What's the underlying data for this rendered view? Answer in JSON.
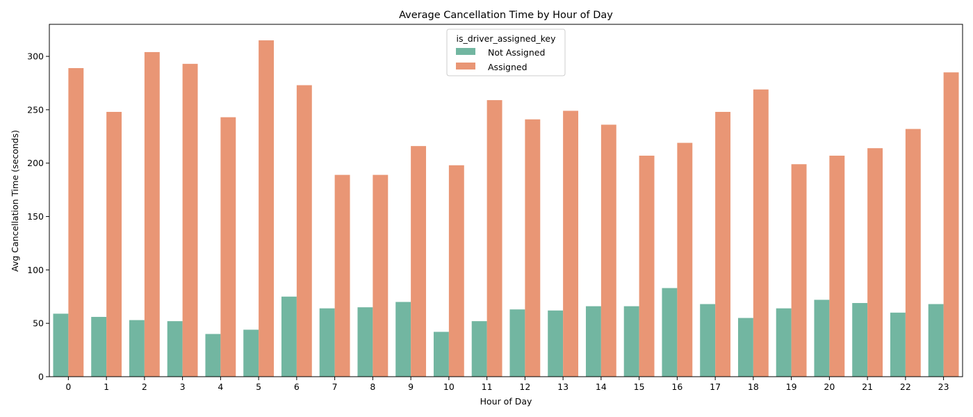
{
  "chart_data": {
    "type": "bar",
    "title": "Average Cancellation Time by Hour of Day",
    "xlabel": "Hour of Day",
    "ylabel": "Avg Cancellation Time (seconds)",
    "ylim": [
      0,
      330
    ],
    "yticks": [
      0,
      50,
      100,
      150,
      200,
      250,
      300
    ],
    "grid": false,
    "categories": [
      "0",
      "1",
      "2",
      "3",
      "4",
      "5",
      "6",
      "7",
      "8",
      "9",
      "10",
      "11",
      "12",
      "13",
      "14",
      "15",
      "16",
      "17",
      "18",
      "19",
      "20",
      "21",
      "22",
      "23"
    ],
    "legend": {
      "title": "is_driver_assigned_key",
      "placement": "upper center"
    },
    "series": [
      {
        "name": "Not Assigned",
        "color": "#72b6a1",
        "values": [
          59,
          56,
          53,
          52,
          40,
          44,
          75,
          64,
          65,
          70,
          42,
          52,
          63,
          62,
          66,
          66,
          83,
          68,
          55,
          64,
          72,
          69,
          60,
          68
        ]
      },
      {
        "name": "Assigned",
        "color": "#e99675",
        "values": [
          289,
          248,
          304,
          293,
          243,
          315,
          273,
          189,
          189,
          216,
          198,
          259,
          241,
          249,
          236,
          207,
          219,
          248,
          269,
          199,
          207,
          214,
          232,
          285
        ]
      }
    ]
  }
}
